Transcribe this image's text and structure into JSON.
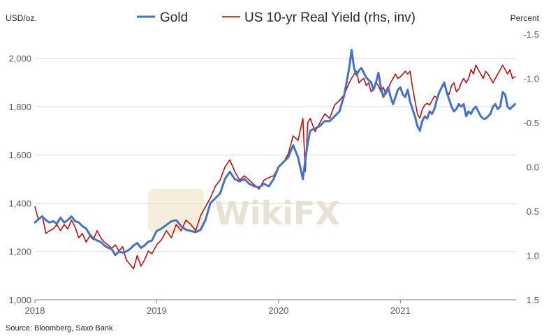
{
  "chart_data": {
    "type": "line",
    "title": "",
    "left_axis_unit": "USD/oz.",
    "right_axis_unit": "Percent",
    "left_ylim": [
      1000,
      2100
    ],
    "right_ylim": [
      1.5,
      -1.5
    ],
    "left_ticks": [
      1000,
      1200,
      1400,
      1600,
      1800,
      2000
    ],
    "left_tick_labels": [
      "1,000",
      "1,200",
      "1,400",
      "1,600",
      "1,800",
      "2,000"
    ],
    "right_ticks": [
      1.5,
      1.0,
      0.5,
      0.0,
      -0.5,
      -1.0,
      -1.5
    ],
    "right_tick_labels": [
      "1.5",
      "1.0",
      "0.5",
      "0.0",
      "-0.5",
      "-1.0",
      "-1.5"
    ],
    "xlim": [
      2018.0,
      2021.95
    ],
    "x_ticks": [
      2018,
      2019,
      2020,
      2021
    ],
    "x_tick_labels": [
      "2018",
      "2019",
      "2020",
      "2021"
    ],
    "grid": "horizontal",
    "legend_position": "top-center",
    "series": [
      {
        "name": "Gold",
        "axis": "left",
        "color": "#4472c4",
        "x": [
          2018.0,
          2018.03,
          2018.06,
          2018.09,
          2018.12,
          2018.15,
          2018.18,
          2018.21,
          2018.24,
          2018.27,
          2018.3,
          2018.33,
          2018.36,
          2018.39,
          2018.42,
          2018.45,
          2018.48,
          2018.51,
          2018.54,
          2018.57,
          2018.6,
          2018.63,
          2018.66,
          2018.69,
          2018.72,
          2018.75,
          2018.78,
          2018.81,
          2018.84,
          2018.87,
          2018.9,
          2018.93,
          2018.96,
          2019.0,
          2019.04,
          2019.08,
          2019.12,
          2019.16,
          2019.2,
          2019.24,
          2019.28,
          2019.32,
          2019.36,
          2019.4,
          2019.44,
          2019.48,
          2019.52,
          2019.56,
          2019.6,
          2019.64,
          2019.68,
          2019.72,
          2019.76,
          2019.8,
          2019.84,
          2019.88,
          2019.92,
          2019.96,
          2020.0,
          2020.04,
          2020.08,
          2020.12,
          2020.16,
          2020.2,
          2020.22,
          2020.24,
          2020.26,
          2020.3,
          2020.34,
          2020.38,
          2020.42,
          2020.46,
          2020.5,
          2020.54,
          2020.58,
          2020.6,
          2020.62,
          2020.64,
          2020.66,
          2020.68,
          2020.7,
          2020.72,
          2020.74,
          2020.76,
          2020.78,
          2020.8,
          2020.82,
          2020.84,
          2020.86,
          2020.88,
          2020.9,
          2020.92,
          2020.94,
          2020.96,
          2020.98,
          2021.0,
          2021.02,
          2021.04,
          2021.06,
          2021.08,
          2021.1,
          2021.12,
          2021.14,
          2021.16,
          2021.18,
          2021.2,
          2021.22,
          2021.24,
          2021.26,
          2021.28,
          2021.3,
          2021.32,
          2021.34,
          2021.36,
          2021.38,
          2021.4,
          2021.42,
          2021.44,
          2021.46,
          2021.48,
          2021.5,
          2021.52,
          2021.54,
          2021.56,
          2021.58,
          2021.6,
          2021.62,
          2021.64,
          2021.66,
          2021.68,
          2021.7,
          2021.72,
          2021.74,
          2021.76,
          2021.78,
          2021.8,
          2021.82,
          2021.84,
          2021.86,
          2021.88,
          2021.9,
          2021.92,
          2021.94
        ],
        "values": [
          1320,
          1335,
          1345,
          1330,
          1320,
          1325,
          1315,
          1340,
          1320,
          1330,
          1345,
          1325,
          1320,
          1305,
          1295,
          1270,
          1255,
          1245,
          1240,
          1225,
          1215,
          1210,
          1185,
          1200,
          1195,
          1200,
          1210,
          1225,
          1235,
          1215,
          1225,
          1240,
          1245,
          1285,
          1295,
          1310,
          1325,
          1330,
          1305,
          1290,
          1285,
          1280,
          1290,
          1330,
          1400,
          1420,
          1440,
          1500,
          1530,
          1500,
          1490,
          1500,
          1480,
          1470,
          1465,
          1480,
          1470,
          1500,
          1550,
          1570,
          1590,
          1640,
          1590,
          1500,
          1580,
          1650,
          1700,
          1710,
          1720,
          1740,
          1740,
          1760,
          1780,
          1850,
          1960,
          2035,
          1960,
          1930,
          1950,
          1960,
          1940,
          1920,
          1910,
          1900,
          1870,
          1900,
          1940,
          1880,
          1840,
          1860,
          1880,
          1840,
          1810,
          1840,
          1870,
          1880,
          1850,
          1840,
          1870,
          1820,
          1790,
          1760,
          1720,
          1700,
          1740,
          1760,
          1750,
          1780,
          1770,
          1790,
          1830,
          1860,
          1880,
          1900,
          1860,
          1830,
          1800,
          1780,
          1790,
          1810,
          1800,
          1810,
          1760,
          1780,
          1770,
          1790,
          1800,
          1780,
          1760,
          1750,
          1750,
          1760,
          1770,
          1800,
          1810,
          1790,
          1800,
          1860,
          1850,
          1800,
          1790,
          1800,
          1810
        ],
        "line_width": 3
      },
      {
        "name": "US 10-yr Real Yield (rhs, inv)",
        "axis": "right",
        "color": "#c00000",
        "x": [
          2018.0,
          2018.03,
          2018.06,
          2018.09,
          2018.12,
          2018.15,
          2018.18,
          2018.21,
          2018.24,
          2018.27,
          2018.3,
          2018.33,
          2018.36,
          2018.39,
          2018.42,
          2018.45,
          2018.48,
          2018.51,
          2018.54,
          2018.57,
          2018.6,
          2018.63,
          2018.66,
          2018.69,
          2018.72,
          2018.75,
          2018.78,
          2018.81,
          2018.84,
          2018.87,
          2018.9,
          2018.93,
          2018.96,
          2019.0,
          2019.04,
          2019.08,
          2019.12,
          2019.16,
          2019.2,
          2019.24,
          2019.28,
          2019.32,
          2019.36,
          2019.4,
          2019.44,
          2019.48,
          2019.52,
          2019.56,
          2019.6,
          2019.64,
          2019.68,
          2019.72,
          2019.76,
          2019.8,
          2019.84,
          2019.88,
          2019.92,
          2019.96,
          2020.0,
          2020.04,
          2020.08,
          2020.12,
          2020.16,
          2020.2,
          2020.22,
          2020.24,
          2020.26,
          2020.3,
          2020.34,
          2020.38,
          2020.42,
          2020.46,
          2020.5,
          2020.54,
          2020.58,
          2020.6,
          2020.62,
          2020.64,
          2020.66,
          2020.68,
          2020.7,
          2020.72,
          2020.74,
          2020.76,
          2020.78,
          2020.8,
          2020.82,
          2020.84,
          2020.86,
          2020.88,
          2020.9,
          2020.92,
          2020.94,
          2020.96,
          2020.98,
          2021.0,
          2021.02,
          2021.04,
          2021.06,
          2021.08,
          2021.1,
          2021.12,
          2021.14,
          2021.16,
          2021.18,
          2021.2,
          2021.22,
          2021.24,
          2021.26,
          2021.28,
          2021.3,
          2021.32,
          2021.34,
          2021.36,
          2021.38,
          2021.4,
          2021.42,
          2021.44,
          2021.46,
          2021.48,
          2021.5,
          2021.52,
          2021.54,
          2021.56,
          2021.58,
          2021.6,
          2021.62,
          2021.64,
          2021.66,
          2021.68,
          2021.7,
          2021.72,
          2021.74,
          2021.76,
          2021.78,
          2021.8,
          2021.82,
          2021.84,
          2021.86,
          2021.88,
          2021.9,
          2021.92,
          2021.94
        ],
        "values": [
          0.45,
          0.6,
          0.55,
          0.75,
          0.72,
          0.7,
          0.65,
          0.72,
          0.65,
          0.7,
          0.6,
          0.68,
          0.8,
          0.75,
          0.85,
          0.78,
          0.82,
          0.72,
          0.8,
          0.85,
          0.88,
          0.92,
          0.88,
          0.95,
          0.9,
          1.05,
          1.1,
          1.15,
          1.0,
          1.12,
          1.05,
          0.95,
          0.98,
          0.88,
          0.82,
          0.72,
          0.8,
          0.65,
          0.72,
          0.6,
          0.65,
          0.72,
          0.55,
          0.45,
          0.35,
          0.22,
          0.15,
          0.0,
          -0.08,
          0.05,
          0.15,
          0.1,
          0.15,
          0.2,
          0.25,
          0.15,
          0.12,
          0.1,
          0.0,
          -0.05,
          -0.15,
          -0.35,
          -0.3,
          -0.55,
          0.05,
          -0.5,
          -0.55,
          -0.4,
          -0.5,
          -0.6,
          -0.55,
          -0.7,
          -0.75,
          -0.82,
          -0.95,
          -1.0,
          -1.05,
          -1.08,
          -0.95,
          -0.98,
          -1.0,
          -0.92,
          -0.95,
          -0.85,
          -0.88,
          -0.95,
          -0.92,
          -0.85,
          -0.9,
          -0.82,
          -0.88,
          -0.95,
          -1.0,
          -1.05,
          -1.0,
          -1.02,
          -1.05,
          -1.08,
          -1.05,
          -1.08,
          -0.9,
          -0.75,
          -0.6,
          -0.55,
          -0.65,
          -0.7,
          -0.72,
          -0.7,
          -0.75,
          -0.8,
          -0.78,
          -0.85,
          -0.9,
          -0.95,
          -0.85,
          -0.82,
          -0.92,
          -0.95,
          -0.85,
          -0.88,
          -0.95,
          -1.0,
          -0.95,
          -1.0,
          -1.1,
          -1.05,
          -1.15,
          -1.1,
          -1.05,
          -1.0,
          -1.08,
          -1.05,
          -1.0,
          -0.95,
          -1.0,
          -1.05,
          -1.1,
          -1.15,
          -1.1,
          -1.05,
          -1.1,
          -1.0,
          -1.02
        ],
        "line_width": 1.5
      }
    ]
  },
  "legend": {
    "gold_label": "Gold",
    "yield_label": "US 10-yr Real Yield (rhs, inv)"
  },
  "watermark": {
    "text": "WikiFX"
  },
  "source": {
    "text": "Source: Bloomberg, Saxo Bank"
  }
}
